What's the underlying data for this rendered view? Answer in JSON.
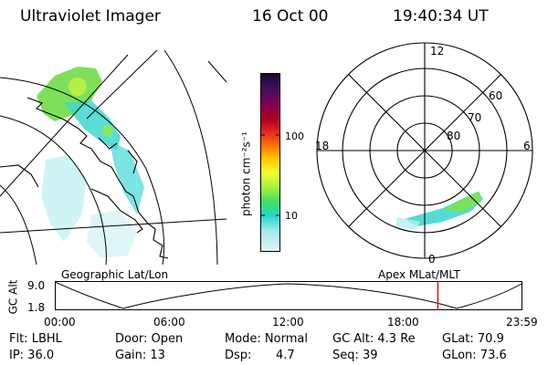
{
  "header": {
    "title": "Ultraviolet Imager",
    "date": "16 Oct 00",
    "time": "19:40:34 UT"
  },
  "colorbar": {
    "unit_label": "photon cm⁻²s⁻¹",
    "ticks": [
      "100",
      "10"
    ],
    "colors": [
      "#1a0a2e",
      "#3b1060",
      "#800050",
      "#b00020",
      "#e83020",
      "#ff7a00",
      "#ffc400",
      "#f0ff30",
      "#a8f040",
      "#40e060",
      "#20d8c8",
      "#9fe8ec",
      "#e4f6f8"
    ]
  },
  "polar_plot": {
    "mlt_labels": {
      "top": "12",
      "left": "18",
      "right": "6",
      "bottom": "0"
    },
    "lat_labels": [
      "60",
      "70",
      "80"
    ]
  },
  "timeline": {
    "left_title": "Geographic Lat/Lon",
    "right_title": "Apex MLat/MLT",
    "axis_title": "GC Alt",
    "y_ticks": [
      "9.0",
      "1.8"
    ],
    "x_ticks": [
      "00:00",
      "06:00",
      "12:00",
      "18:00",
      "23:59"
    ],
    "marker_time_fraction": 0.8198
  },
  "status": {
    "flt": "Flt: LBHL",
    "ip": "IP: 36.0",
    "door": "Door: Open",
    "gain": "Gain: 13",
    "mode": "Mode: Normal",
    "dsp_label": "Dsp:",
    "dsp_value": "4.7",
    "gcalt": "GC Alt: 4.3 Re",
    "seq": "Seq: 39",
    "glat": "GLat:  70.9",
    "glon": "GLon:  73.6"
  },
  "colors": {
    "marker": "#e01010",
    "aurora_bright": "#7ee05a",
    "aurora_dim": "#40d8d0"
  }
}
